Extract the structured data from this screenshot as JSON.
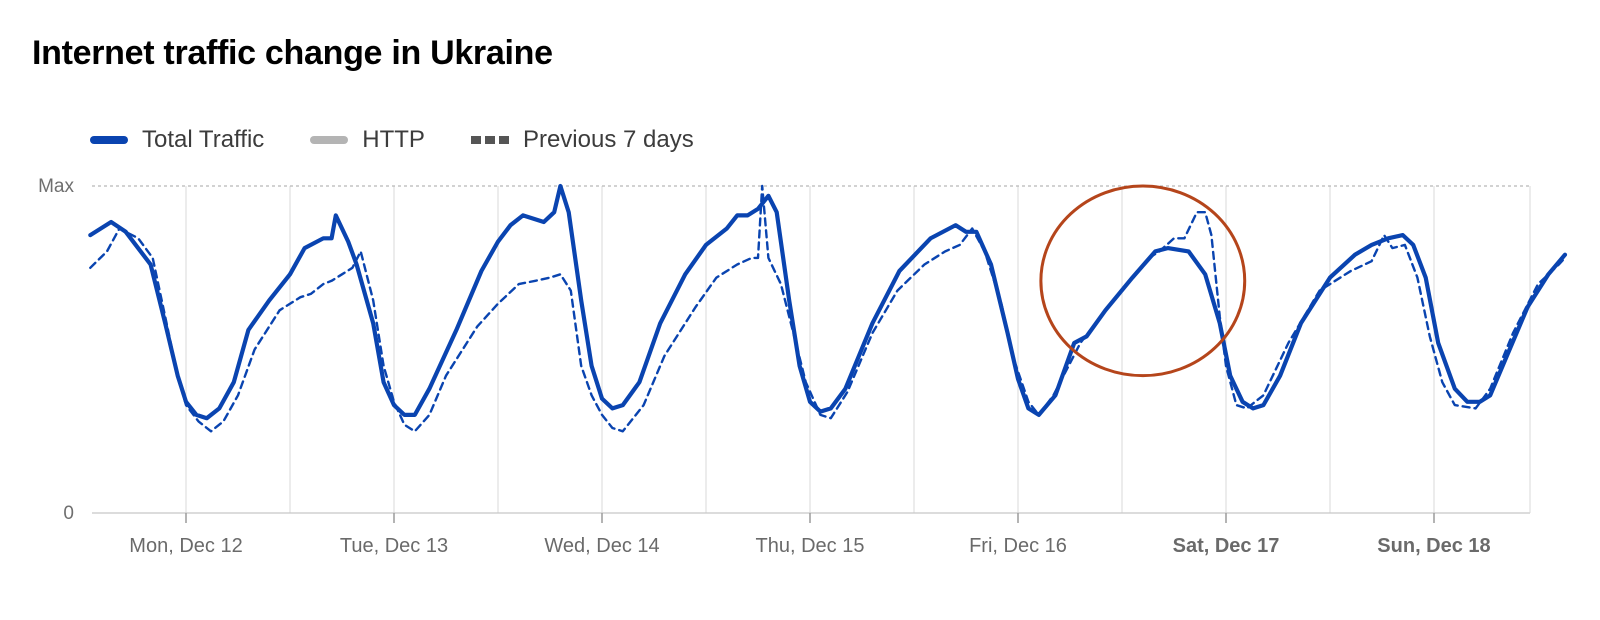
{
  "title": "Internet traffic change in Ukraine",
  "legend": {
    "total_label": "Total Traffic",
    "http_label": "HTTP",
    "previous_label": "Previous 7 days"
  },
  "colors": {
    "total": "#0a44b0",
    "previous": "#0a44b0",
    "http": "#b4b4b4",
    "annotation": "#b5451b",
    "grid": "#d8d8d8"
  },
  "chart_data": {
    "type": "line",
    "title": "Internet traffic change in Ukraine",
    "y_tick_labels": [
      "Max",
      "0"
    ],
    "ylim": [
      0,
      100
    ],
    "xlim": [
      0,
      7
    ],
    "x_unit": "days since Mon, Dec 12 00:00",
    "x_tick_labels": [
      {
        "label": "Mon, Dec 12",
        "x": 0,
        "bold": false
      },
      {
        "label": "Tue, Dec 13",
        "x": 1,
        "bold": false
      },
      {
        "label": "Wed, Dec 14",
        "x": 2,
        "bold": false
      },
      {
        "label": "Thu, Dec 15",
        "x": 3,
        "bold": false
      },
      {
        "label": "Fri, Dec 16",
        "x": 4,
        "bold": false
      },
      {
        "label": "Sat, Dec 17",
        "x": 5,
        "bold": true
      },
      {
        "label": "Sun, Dec 18",
        "x": 6,
        "bold": true
      }
    ],
    "grid": true,
    "legend_position": "top-left",
    "series": [
      {
        "name": "Total Traffic",
        "style": "solid",
        "points": [
          [
            -0.46,
            85
          ],
          [
            -0.36,
            89
          ],
          [
            -0.29,
            86
          ],
          [
            -0.17,
            76
          ],
          [
            -0.1,
            58
          ],
          [
            -0.04,
            42
          ],
          [
            0,
            34
          ],
          [
            0.05,
            30
          ],
          [
            0.1,
            29
          ],
          [
            0.16,
            32
          ],
          [
            0.23,
            40
          ],
          [
            0.3,
            56
          ],
          [
            0.4,
            65
          ],
          [
            0.5,
            73
          ],
          [
            0.57,
            81
          ],
          [
            0.66,
            84
          ],
          [
            0.7,
            84
          ],
          [
            0.72,
            91
          ],
          [
            0.78,
            83
          ],
          [
            0.82,
            76
          ],
          [
            0.9,
            58
          ],
          [
            0.95,
            40
          ],
          [
            1.0,
            33
          ],
          [
            1.05,
            30
          ],
          [
            1.1,
            30
          ],
          [
            1.17,
            38
          ],
          [
            1.3,
            56
          ],
          [
            1.42,
            74
          ],
          [
            1.5,
            83
          ],
          [
            1.56,
            88
          ],
          [
            1.62,
            91
          ],
          [
            1.72,
            89
          ],
          [
            1.77,
            92
          ],
          [
            1.8,
            100
          ],
          [
            1.84,
            92
          ],
          [
            1.9,
            65
          ],
          [
            1.95,
            45
          ],
          [
            2.0,
            35
          ],
          [
            2.05,
            32
          ],
          [
            2.1,
            33
          ],
          [
            2.18,
            40
          ],
          [
            2.28,
            58
          ],
          [
            2.4,
            73
          ],
          [
            2.5,
            82
          ],
          [
            2.6,
            87
          ],
          [
            2.65,
            91
          ],
          [
            2.7,
            91
          ],
          [
            2.75,
            93
          ],
          [
            2.8,
            97
          ],
          [
            2.84,
            92
          ],
          [
            2.9,
            65
          ],
          [
            2.95,
            45
          ],
          [
            3.0,
            34
          ],
          [
            3.05,
            31
          ],
          [
            3.1,
            32
          ],
          [
            3.17,
            38
          ],
          [
            3.3,
            58
          ],
          [
            3.43,
            74
          ],
          [
            3.58,
            84
          ],
          [
            3.7,
            88
          ],
          [
            3.75,
            86
          ],
          [
            3.8,
            86
          ],
          [
            3.87,
            76
          ],
          [
            3.95,
            55
          ],
          [
            4.0,
            41
          ],
          [
            4.05,
            32
          ],
          [
            4.1,
            30
          ],
          [
            4.18,
            36
          ],
          [
            4.27,
            52
          ],
          [
            4.33,
            54
          ],
          [
            4.42,
            62
          ],
          [
            4.55,
            72
          ],
          [
            4.66,
            80
          ],
          [
            4.72,
            81
          ],
          [
            4.82,
            80
          ],
          [
            4.9,
            73
          ],
          [
            4.97,
            58
          ],
          [
            5.02,
            42
          ],
          [
            5.08,
            34
          ],
          [
            5.13,
            32
          ],
          [
            5.18,
            33
          ],
          [
            5.26,
            42
          ],
          [
            5.36,
            58
          ],
          [
            5.5,
            72
          ],
          [
            5.62,
            79
          ],
          [
            5.7,
            82
          ],
          [
            5.78,
            84
          ],
          [
            5.85,
            85
          ],
          [
            5.9,
            82
          ],
          [
            5.96,
            72
          ],
          [
            6.02,
            52
          ],
          [
            6.1,
            38
          ],
          [
            6.16,
            34
          ],
          [
            6.22,
            34
          ],
          [
            6.27,
            36
          ],
          [
            6.35,
            48
          ],
          [
            6.45,
            63
          ],
          [
            6.55,
            73
          ],
          [
            6.63,
            79
          ]
        ]
      },
      {
        "name": "Previous 7 days",
        "style": "dashed",
        "points": [
          [
            -0.46,
            75
          ],
          [
            -0.38,
            80
          ],
          [
            -0.32,
            87
          ],
          [
            -0.23,
            84
          ],
          [
            -0.16,
            78
          ],
          [
            -0.1,
            60
          ],
          [
            -0.04,
            42
          ],
          [
            0.0,
            33
          ],
          [
            0.06,
            28
          ],
          [
            0.12,
            25
          ],
          [
            0.18,
            28
          ],
          [
            0.25,
            36
          ],
          [
            0.33,
            50
          ],
          [
            0.45,
            62
          ],
          [
            0.55,
            66
          ],
          [
            0.6,
            67
          ],
          [
            0.66,
            70
          ],
          [
            0.7,
            71
          ],
          [
            0.75,
            73
          ],
          [
            0.8,
            75
          ],
          [
            0.84,
            80
          ],
          [
            0.9,
            65
          ],
          [
            0.95,
            45
          ],
          [
            1.0,
            34
          ],
          [
            1.05,
            27
          ],
          [
            1.1,
            25
          ],
          [
            1.17,
            30
          ],
          [
            1.25,
            42
          ],
          [
            1.4,
            57
          ],
          [
            1.5,
            64
          ],
          [
            1.6,
            70
          ],
          [
            1.68,
            71
          ],
          [
            1.75,
            72
          ],
          [
            1.8,
            73
          ],
          [
            1.85,
            68
          ],
          [
            1.9,
            45
          ],
          [
            1.95,
            36
          ],
          [
            2.0,
            30
          ],
          [
            2.05,
            26
          ],
          [
            2.1,
            25
          ],
          [
            2.2,
            33
          ],
          [
            2.3,
            48
          ],
          [
            2.45,
            63
          ],
          [
            2.55,
            72
          ],
          [
            2.65,
            76
          ],
          [
            2.72,
            78
          ],
          [
            2.75,
            78
          ],
          [
            2.77,
            100
          ],
          [
            2.8,
            78
          ],
          [
            2.86,
            70
          ],
          [
            2.92,
            55
          ],
          [
            2.98,
            40
          ],
          [
            3.05,
            30
          ],
          [
            3.1,
            29
          ],
          [
            3.18,
            37
          ],
          [
            3.3,
            55
          ],
          [
            3.42,
            68
          ],
          [
            3.55,
            76
          ],
          [
            3.65,
            80
          ],
          [
            3.72,
            82
          ],
          [
            3.78,
            87
          ],
          [
            3.84,
            80
          ],
          [
            3.92,
            64
          ],
          [
            3.98,
            47
          ],
          [
            4.05,
            34
          ],
          [
            4.1,
            30
          ],
          [
            4.17,
            36
          ],
          [
            4.3,
            52
          ],
          [
            4.42,
            62
          ],
          [
            4.55,
            72
          ],
          [
            4.63,
            78
          ],
          [
            4.68,
            80
          ],
          [
            4.75,
            84
          ],
          [
            4.8,
            84
          ],
          [
            4.86,
            92
          ],
          [
            4.9,
            92
          ],
          [
            4.93,
            85
          ],
          [
            4.97,
            60
          ],
          [
            5.0,
            45
          ],
          [
            5.05,
            33
          ],
          [
            5.1,
            32
          ],
          [
            5.18,
            36
          ],
          [
            5.3,
            52
          ],
          [
            5.45,
            68
          ],
          [
            5.6,
            74
          ],
          [
            5.7,
            77
          ],
          [
            5.76,
            85
          ],
          [
            5.8,
            81
          ],
          [
            5.86,
            82
          ],
          [
            5.92,
            72
          ],
          [
            5.98,
            54
          ],
          [
            6.04,
            40
          ],
          [
            6.1,
            33
          ],
          [
            6.2,
            32
          ],
          [
            6.27,
            38
          ],
          [
            6.38,
            55
          ],
          [
            6.5,
            70
          ],
          [
            6.6,
            76
          ],
          [
            6.63,
            78
          ]
        ]
      },
      {
        "name": "HTTP",
        "style": "solid",
        "points": []
      }
    ],
    "annotations": [
      {
        "type": "circle",
        "note": "highlighted region",
        "x_center": 4.6,
        "y_center": 71,
        "x_radius": 0.49,
        "y_radius": 29
      }
    ]
  }
}
